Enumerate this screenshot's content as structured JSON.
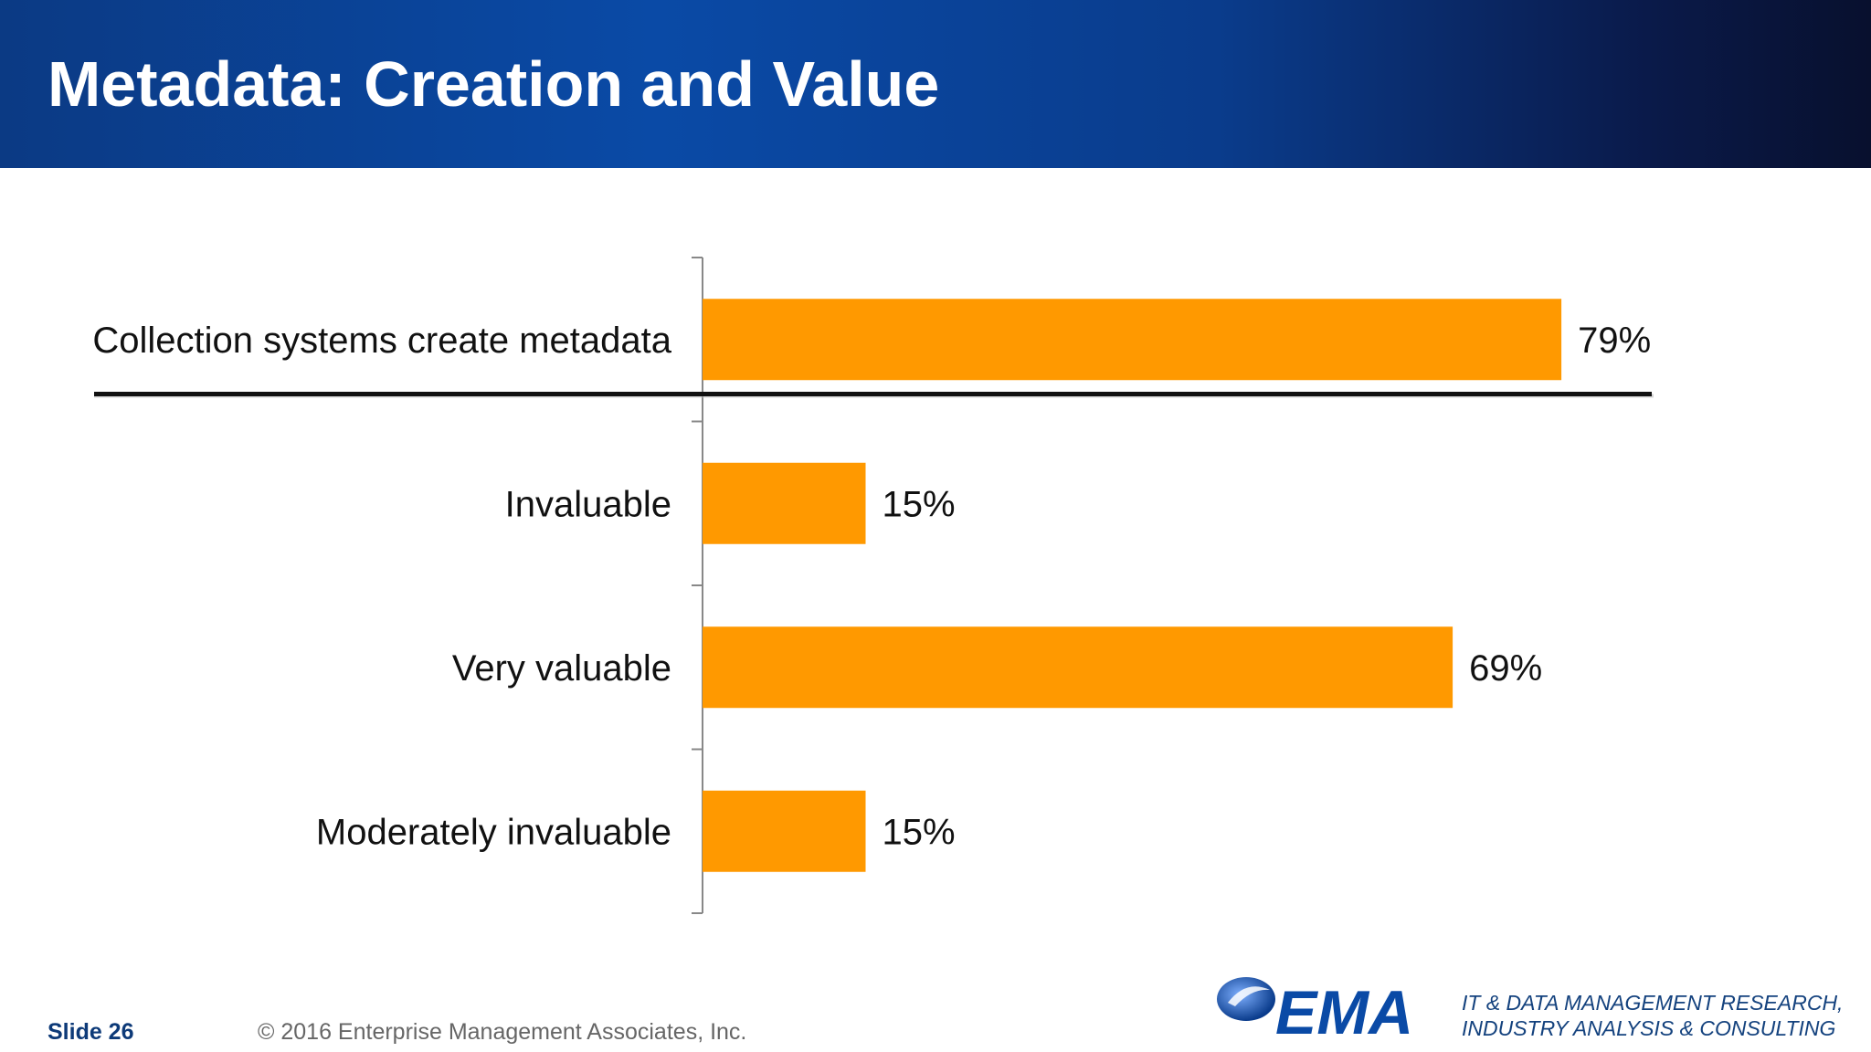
{
  "slide": {
    "title": "Metadata: Creation and Value",
    "footer": {
      "slide_number": "Slide 26",
      "copyright": "© 2016 Enterprise Management Associates, Inc.",
      "logo_text": "EMA",
      "tagline_line1": "IT & DATA MANAGEMENT RESEARCH,",
      "tagline_line2": "INDUSTRY ANALYSIS & CONSULTING"
    }
  },
  "chart_data": {
    "type": "bar",
    "orientation": "horizontal",
    "categories": [
      "Collection systems create metadata",
      "Invaluable",
      "Very valuable",
      "Moderately invaluable"
    ],
    "values": [
      79,
      15,
      69,
      15
    ],
    "value_labels": [
      "79%",
      "15%",
      "69%",
      "15%"
    ],
    "unit": "%",
    "xlim": [
      0,
      100
    ],
    "bar_color": "#ff9900",
    "grid": false,
    "legend": "none",
    "separator_after_category": 0
  }
}
